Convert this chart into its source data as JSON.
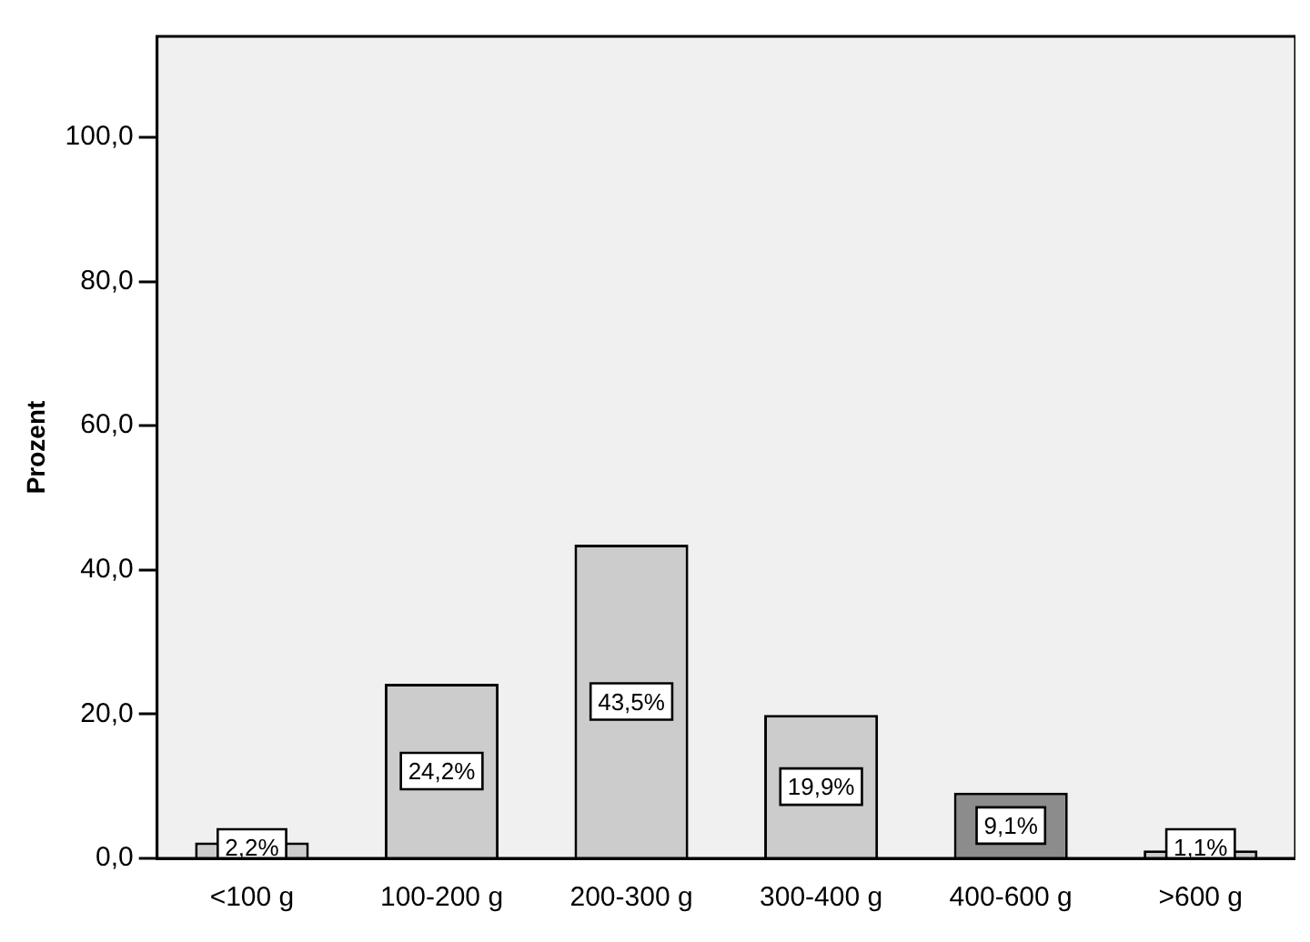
{
  "chart_data": {
    "type": "bar",
    "ylabel": "Prozent",
    "categories": [
      "<100 g",
      "100-200 g",
      "200-300 g",
      "300-400 g",
      "400-600 g",
      ">600 g"
    ],
    "values": [
      2.2,
      24.2,
      43.5,
      19.9,
      9.1,
      1.1
    ],
    "colors": [
      "#cccccc",
      "#cccccc",
      "#cccccc",
      "#cccccc",
      "#8c8c8c",
      "#cccccc"
    ],
    "value_labels": [
      "2,2%",
      "24,2%",
      "43,5%",
      "19,9%",
      "9,1%",
      "1,1%"
    ],
    "ylim": [
      0,
      114
    ],
    "yticks": [
      {
        "value": 0,
        "label": "0,0"
      },
      {
        "value": 20,
        "label": "20,0"
      },
      {
        "value": 40,
        "label": "40,0"
      },
      {
        "value": 60,
        "label": "60,0"
      },
      {
        "value": 80,
        "label": "80,0"
      },
      {
        "value": 100,
        "label": "100,0"
      }
    ],
    "grid": false,
    "legend": false
  }
}
